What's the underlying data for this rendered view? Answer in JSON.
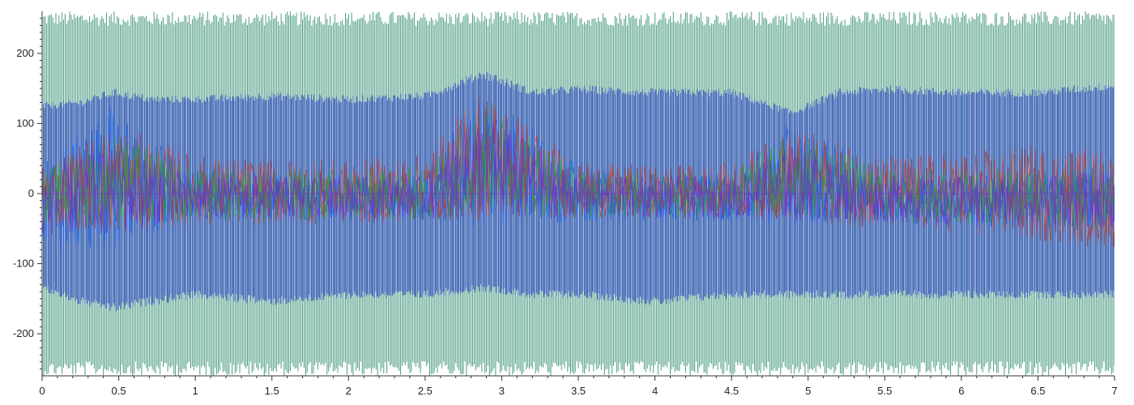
{
  "chart_data": {
    "type": "line",
    "title": "",
    "xlabel": "",
    "ylabel": "",
    "xlim": [
      0,
      7
    ],
    "ylim": [
      -260,
      260
    ],
    "x_ticks": [
      0,
      0.5,
      1,
      1.5,
      2,
      2.5,
      3,
      3.5,
      4,
      4.5,
      5,
      5.5,
      6,
      6.5,
      7
    ],
    "x_tick_labels": [
      "0",
      "0.5",
      "1",
      "1.5",
      "2",
      "2.5",
      "3",
      "3.5",
      "4",
      "4.5",
      "5",
      "5.5",
      "6",
      "6.5",
      "7"
    ],
    "y_ticks": [
      200,
      100,
      0,
      -100,
      -200
    ],
    "y_tick_labels": [
      "200",
      "100",
      "0",
      "-100",
      "-200"
    ],
    "grid": false,
    "legend": "none",
    "series": [
      {
        "color": "#2e8b6e",
        "style": "dense-oscillation",
        "envelope": {
          "x": [
            0,
            1,
            2,
            3,
            4,
            5,
            6,
            7
          ],
          "y_max": [
            260,
            260,
            260,
            260,
            260,
            260,
            260,
            260
          ],
          "y_min": [
            -260,
            -260,
            -260,
            -260,
            -260,
            -260,
            -260,
            -260
          ]
        }
      },
      {
        "color": "#2a3fc9",
        "style": "dense-oscillation",
        "envelope": {
          "x": [
            0,
            0.25,
            0.47,
            0.7,
            1,
            1.5,
            2,
            2.5,
            2.88,
            3.2,
            3.5,
            4,
            4.5,
            4.9,
            5.2,
            5.5,
            6,
            6.5,
            7
          ],
          "y_max": [
            130,
            135,
            150,
            140,
            140,
            145,
            140,
            145,
            178,
            150,
            155,
            150,
            150,
            120,
            150,
            155,
            150,
            150,
            160
          ],
          "y_min": [
            -140,
            -160,
            -170,
            -160,
            -150,
            -160,
            -150,
            -150,
            -140,
            -150,
            -150,
            -160,
            -150,
            -150,
            -150,
            -150,
            -150,
            -150,
            -150
          ]
        }
      },
      {
        "color": "#1565ff",
        "style": "band",
        "envelope": {
          "x": [
            0,
            0.47,
            1,
            1.5,
            2,
            2.5,
            2.88,
            3.5,
            4,
            4.5,
            4.9,
            5.5,
            6,
            6.5,
            7
          ],
          "y_max": [
            45,
            130,
            30,
            30,
            30,
            30,
            160,
            40,
            30,
            30,
            105,
            30,
            30,
            30,
            40
          ],
          "y_min": [
            -90,
            -80,
            -40,
            -40,
            -40,
            -40,
            -50,
            -40,
            -40,
            -40,
            -50,
            -40,
            -50,
            -50,
            -55
          ]
        }
      },
      {
        "color": "#c0392b",
        "style": "band",
        "envelope": {
          "x": [
            0,
            0.47,
            1,
            1.5,
            2,
            2.5,
            2.88,
            3.5,
            4,
            4.5,
            4.9,
            5.5,
            6,
            6.5,
            7
          ],
          "y_max": [
            45,
            100,
            55,
            50,
            50,
            55,
            155,
            45,
            40,
            45,
            95,
            55,
            60,
            70,
            65
          ],
          "y_min": [
            -45,
            -60,
            -45,
            -45,
            -45,
            -40,
            -40,
            -35,
            -35,
            -35,
            -40,
            -50,
            -60,
            -70,
            -80
          ]
        }
      },
      {
        "color": "#2e9d3a",
        "style": "band",
        "envelope": {
          "x": [
            0,
            0.47,
            1,
            1.5,
            2,
            2.5,
            2.88,
            3.5,
            4,
            4.5,
            4.9,
            5.5,
            6,
            6.5,
            7
          ],
          "y_max": [
            30,
            90,
            35,
            35,
            35,
            35,
            140,
            35,
            30,
            35,
            90,
            35,
            35,
            35,
            40
          ],
          "y_min": [
            -40,
            -50,
            -40,
            -40,
            -40,
            -40,
            -30,
            -35,
            -35,
            -35,
            -35,
            -40,
            -45,
            -50,
            -55
          ]
        }
      },
      {
        "color": "#6a2fd0",
        "style": "band",
        "envelope": {
          "x": [
            0,
            0.47,
            1,
            1.5,
            2,
            2.5,
            2.88,
            3.5,
            4,
            4.5,
            4.9,
            5.5,
            6,
            6.5,
            7
          ],
          "y_max": [
            30,
            70,
            25,
            25,
            25,
            25,
            120,
            25,
            25,
            25,
            70,
            25,
            25,
            30,
            30
          ],
          "y_min": [
            -60,
            -60,
            -35,
            -35,
            -35,
            -35,
            -40,
            -35,
            -35,
            -35,
            -40,
            -40,
            -45,
            -45,
            -50
          ]
        }
      }
    ]
  }
}
